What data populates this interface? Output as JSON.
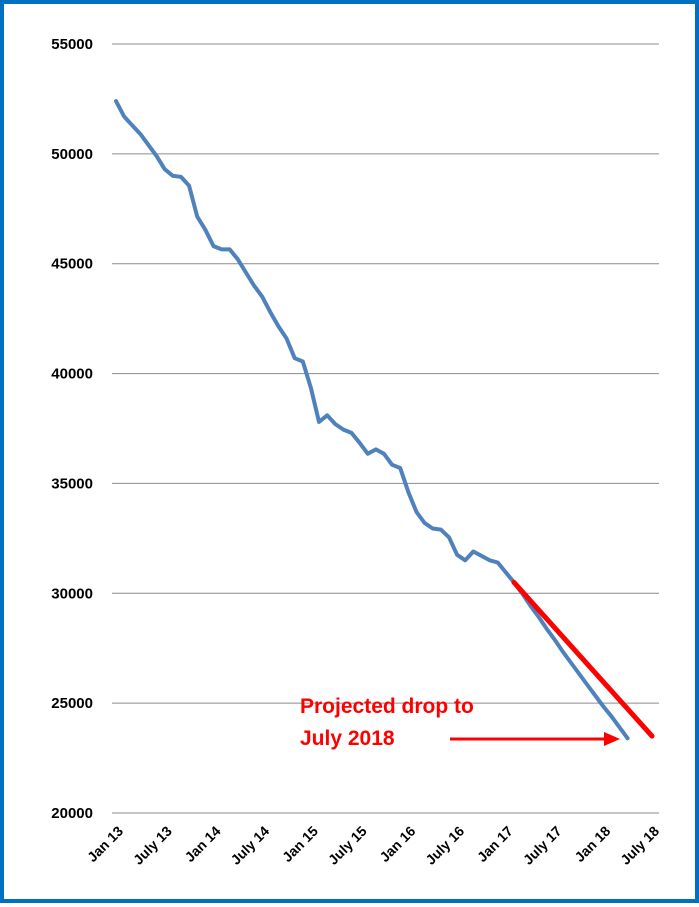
{
  "chart_data": {
    "type": "line",
    "title": "",
    "xlabel": "",
    "ylabel": "",
    "ylim": [
      20000,
      55000
    ],
    "yticks": [
      20000,
      25000,
      30000,
      35000,
      40000,
      45000,
      50000,
      55000
    ],
    "ytick_labels": [
      "20000",
      "25000",
      "30000",
      "35000",
      "40000",
      "45000",
      "50000",
      "55000"
    ],
    "xtick_labels": [
      "Jan 13",
      "July 13",
      "Jan 14",
      "July 14",
      "Jan 15",
      "July 15",
      "Jan 16",
      "July 16",
      "Jan 17",
      "July 17",
      "Jan 18",
      "July 18"
    ],
    "grid": true,
    "series": [
      {
        "color": "#4f81bd",
        "x": [
          "2013-01",
          "2013-02",
          "2013-03",
          "2013-04",
          "2013-05",
          "2013-06",
          "2013-07",
          "2013-08",
          "2013-09",
          "2013-10",
          "2013-11",
          "2013-12",
          "2014-01",
          "2014-02",
          "2014-03",
          "2014-04",
          "2014-05",
          "2014-06",
          "2014-07",
          "2014-08",
          "2014-09",
          "2014-10",
          "2014-11",
          "2014-12",
          "2015-01",
          "2015-02",
          "2015-03",
          "2015-04",
          "2015-05",
          "2015-06",
          "2015-07",
          "2015-08",
          "2015-09",
          "2015-10",
          "2015-11",
          "2015-12",
          "2016-01",
          "2016-02",
          "2016-03",
          "2016-04",
          "2016-05",
          "2016-06",
          "2016-07",
          "2016-08",
          "2016-09",
          "2016-10",
          "2016-11",
          "2016-12",
          "2017-01",
          "2017-02",
          "2017-03",
          "2017-04",
          "2017-05",
          "2017-06",
          "2017-07",
          "2017-08",
          "2017-09",
          "2017-10",
          "2017-11",
          "2017-12",
          "2018-01",
          "2018-02",
          "2018-03",
          "2018-04",
          "2018-05",
          "2018-06",
          "2018-07"
        ],
        "values": [
          52400,
          51700,
          51300,
          50900,
          50400,
          49900,
          49300,
          49000,
          48950,
          48550,
          47150,
          46550,
          45800,
          45650,
          45650,
          45200,
          44600,
          44000,
          43500,
          42800,
          42150,
          41600,
          40700,
          40550,
          39350,
          37800,
          38100,
          37700,
          37450,
          37300,
          36850,
          36350,
          36550,
          36350,
          35850,
          35700,
          34600,
          33700,
          33200,
          32950,
          32900,
          32550,
          31750,
          31500,
          31900,
          31700,
          31500,
          31400,
          30950,
          30500,
          30000,
          29450,
          28950,
          28400,
          27900,
          27350,
          26850,
          26350,
          25850,
          25350,
          24850,
          24400,
          23900,
          23400,
          null,
          null,
          null
        ]
      },
      {
        "color": "#ff0000",
        "x": [
          "2017-02",
          "2018-07"
        ],
        "values": [
          30500,
          23500
        ]
      }
    ],
    "annotations": [
      {
        "line1": "Projected drop to",
        "line2": "July 2018"
      }
    ]
  }
}
